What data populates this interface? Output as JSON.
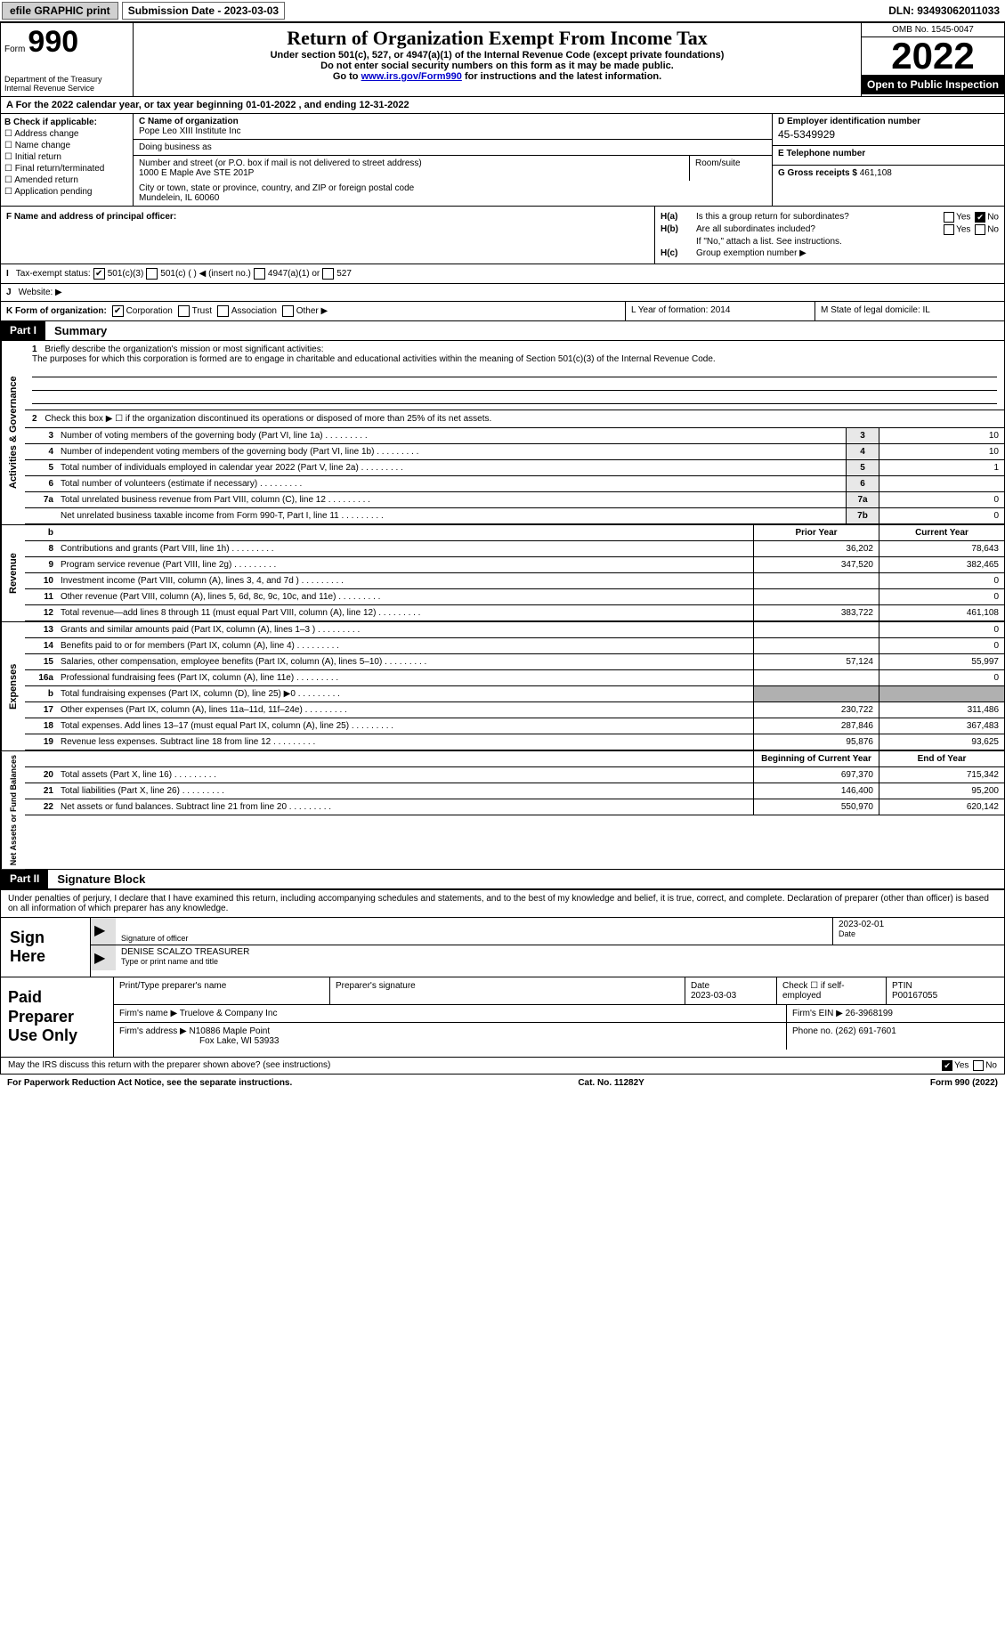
{
  "topbar": {
    "efile": "efile GRAPHIC print",
    "submission": "Submission Date - 2023-03-03",
    "dln": "DLN: 93493062011033"
  },
  "header": {
    "form_label": "Form",
    "form_number": "990",
    "dept": "Department of the Treasury",
    "irs": "Internal Revenue Service",
    "title": "Return of Organization Exempt From Income Tax",
    "sub1": "Under section 501(c), 527, or 4947(a)(1) of the Internal Revenue Code (except private foundations)",
    "sub2": "Do not enter social security numbers on this form as it may be made public.",
    "sub3_prefix": "Go to ",
    "sub3_link": "www.irs.gov/Form990",
    "sub3_suffix": " for instructions and the latest information.",
    "omb": "OMB No. 1545-0047",
    "year": "2022",
    "open": "Open to Public Inspection"
  },
  "rowA": "A For the 2022 calendar year, or tax year beginning 01-01-2022   , and ending 12-31-2022",
  "colB": {
    "label": "B Check if applicable:",
    "items": [
      "Address change",
      "Name change",
      "Initial return",
      "Final return/terminated",
      "Amended return",
      "Application pending"
    ]
  },
  "colC": {
    "name_label": "C Name of organization",
    "name": "Pope Leo XIII Institute Inc",
    "dba_label": "Doing business as",
    "dba": "",
    "street_label": "Number and street (or P.O. box if mail is not delivered to street address)",
    "room_label": "Room/suite",
    "street": "1000 E Maple Ave STE 201P",
    "city_label": "City or town, state or province, country, and ZIP or foreign postal code",
    "city": "Mundelein, IL  60060"
  },
  "colD": {
    "ein_label": "D Employer identification number",
    "ein": "45-5349929",
    "phone_label": "E Telephone number",
    "phone": "",
    "gross_label": "G Gross receipts $",
    "gross": "461,108"
  },
  "rowF": {
    "label": "F Name and address of principal officer:",
    "value": ""
  },
  "rowH": {
    "a_label": "H(a)",
    "a_text": "Is this a group return for subordinates?",
    "a_no_checked": true,
    "b_label": "H(b)",
    "b_text": "Are all subordinates included?",
    "b_note": "If \"No,\" attach a list. See instructions.",
    "c_label": "H(c)",
    "c_text": "Group exemption number ▶"
  },
  "rowI": {
    "label": "I",
    "text": "Tax-exempt status:",
    "opt1": "501(c)(3)",
    "opt2": "501(c) (  ) ◀ (insert no.)",
    "opt3": "4947(a)(1) or",
    "opt4": "527"
  },
  "rowJ": {
    "label": "J",
    "text": "Website: ▶"
  },
  "rowK": {
    "k_label": "K Form of organization:",
    "opts": [
      "Corporation",
      "Trust",
      "Association",
      "Other ▶"
    ],
    "l": "L Year of formation: 2014",
    "m": "M State of legal domicile: IL"
  },
  "part1": {
    "label": "Part I",
    "title": "Summary"
  },
  "mission": {
    "num": "1",
    "prompt": "Briefly describe the organization's mission or most significant activities:",
    "text": "The purposes for which this corporation is formed are to engage in charitable and educational activities within the meaning of Section 501(c)(3) of the Internal Revenue Code."
  },
  "governance": {
    "vtab": "Activities & Governance",
    "line2": {
      "num": "2",
      "text": "Check this box ▶ ☐ if the organization discontinued its operations or disposed of more than 25% of its net assets."
    },
    "rows": [
      {
        "num": "3",
        "text": "Number of voting members of the governing body (Part VI, line 1a)",
        "box": "3",
        "val": "10"
      },
      {
        "num": "4",
        "text": "Number of independent voting members of the governing body (Part VI, line 1b)",
        "box": "4",
        "val": "10"
      },
      {
        "num": "5",
        "text": "Total number of individuals employed in calendar year 2022 (Part V, line 2a)",
        "box": "5",
        "val": "1"
      },
      {
        "num": "6",
        "text": "Total number of volunteers (estimate if necessary)",
        "box": "6",
        "val": ""
      },
      {
        "num": "7a",
        "text": "Total unrelated business revenue from Part VIII, column (C), line 12",
        "box": "7a",
        "val": "0"
      },
      {
        "num": "",
        "text": "Net unrelated business taxable income from Form 990-T, Part I, line 11",
        "box": "7b",
        "val": "0"
      }
    ]
  },
  "revenue": {
    "vtab": "Revenue",
    "header_prior": "Prior Year",
    "header_current": "Current Year",
    "rows": [
      {
        "num": "8",
        "text": "Contributions and grants (Part VIII, line 1h)",
        "prior": "36,202",
        "current": "78,643"
      },
      {
        "num": "9",
        "text": "Program service revenue (Part VIII, line 2g)",
        "prior": "347,520",
        "current": "382,465"
      },
      {
        "num": "10",
        "text": "Investment income (Part VIII, column (A), lines 3, 4, and 7d )",
        "prior": "",
        "current": "0"
      },
      {
        "num": "11",
        "text": "Other revenue (Part VIII, column (A), lines 5, 6d, 8c, 9c, 10c, and 11e)",
        "prior": "",
        "current": "0"
      },
      {
        "num": "12",
        "text": "Total revenue—add lines 8 through 11 (must equal Part VIII, column (A), line 12)",
        "prior": "383,722",
        "current": "461,108"
      }
    ]
  },
  "expenses": {
    "vtab": "Expenses",
    "rows": [
      {
        "num": "13",
        "text": "Grants and similar amounts paid (Part IX, column (A), lines 1–3 )",
        "prior": "",
        "current": "0"
      },
      {
        "num": "14",
        "text": "Benefits paid to or for members (Part IX, column (A), line 4)",
        "prior": "",
        "current": "0"
      },
      {
        "num": "15",
        "text": "Salaries, other compensation, employee benefits (Part IX, column (A), lines 5–10)",
        "prior": "57,124",
        "current": "55,997"
      },
      {
        "num": "16a",
        "text": "Professional fundraising fees (Part IX, column (A), line 11e)",
        "prior": "",
        "current": "0"
      },
      {
        "num": "b",
        "text": "Total fundraising expenses (Part IX, column (D), line 25) ▶0",
        "prior": "shaded",
        "current": "shaded"
      },
      {
        "num": "17",
        "text": "Other expenses (Part IX, column (A), lines 11a–11d, 11f–24e)",
        "prior": "230,722",
        "current": "311,486"
      },
      {
        "num": "18",
        "text": "Total expenses. Add lines 13–17 (must equal Part IX, column (A), line 25)",
        "prior": "287,846",
        "current": "367,483"
      },
      {
        "num": "19",
        "text": "Revenue less expenses. Subtract line 18 from line 12",
        "prior": "95,876",
        "current": "93,625"
      }
    ]
  },
  "netassets": {
    "vtab": "Net Assets or Fund Balances",
    "header_begin": "Beginning of Current Year",
    "header_end": "End of Year",
    "rows": [
      {
        "num": "20",
        "text": "Total assets (Part X, line 16)",
        "begin": "697,370",
        "end": "715,342"
      },
      {
        "num": "21",
        "text": "Total liabilities (Part X, line 26)",
        "begin": "146,400",
        "end": "95,200"
      },
      {
        "num": "22",
        "text": "Net assets or fund balances. Subtract line 21 from line 20",
        "begin": "550,970",
        "end": "620,142"
      }
    ]
  },
  "part2": {
    "label": "Part II",
    "title": "Signature Block"
  },
  "sig": {
    "declaration": "Under penalties of perjury, I declare that I have examined this return, including accompanying schedules and statements, and to the best of my knowledge and belief, it is true, correct, and complete. Declaration of preparer (other than officer) is based on all information of which preparer has any knowledge.",
    "sign_here": "Sign Here",
    "sig_officer": "Signature of officer",
    "date": "Date",
    "date_val": "2023-02-01",
    "name_title": "DENISE SCALZO  TREASURER",
    "type_print": "Type or print name and title"
  },
  "preparer": {
    "label": "Paid Preparer Use Only",
    "print_name": "Print/Type preparer's name",
    "prep_sig": "Preparer's signature",
    "date_label": "Date",
    "date": "2023-03-03",
    "check_if": "Check ☐ if self-employed",
    "ptin_label": "PTIN",
    "ptin": "P00167055",
    "firm_name_label": "Firm's name    ▶",
    "firm_name": "Truelove & Company Inc",
    "firm_ein_label": "Firm's EIN ▶",
    "firm_ein": "26-3968199",
    "firm_addr_label": "Firm's address ▶",
    "firm_addr1": "N10886 Maple Point",
    "firm_addr2": "Fox Lake, WI  53933",
    "phone_label": "Phone no.",
    "phone": "(262) 691-7601"
  },
  "discuss": {
    "text": "May the IRS discuss this return with the preparer shown above? (see instructions)",
    "yes_checked": true
  },
  "footer": {
    "left": "For Paperwork Reduction Act Notice, see the separate instructions.",
    "center": "Cat. No. 11282Y",
    "right": "Form 990 (2022)"
  }
}
